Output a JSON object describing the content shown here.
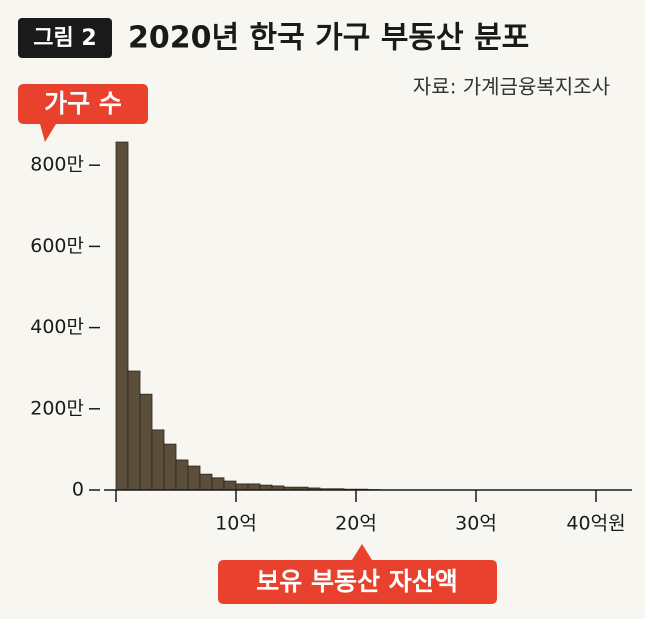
{
  "chart_data": {
    "type": "histogram",
    "badge": "그림 2",
    "title": "2020년 한국 가구 부동산 분포",
    "source": "자료: 가계금융복지조사",
    "y_label": "가구 수",
    "x_label": "보유 부동산 자산액",
    "bins": [
      0,
      1,
      2,
      3,
      4,
      5,
      6,
      7,
      8,
      9,
      10,
      11,
      12,
      13,
      14,
      15,
      16,
      17,
      18,
      19,
      20,
      21,
      22
    ],
    "counts": [
      857,
      293,
      236,
      148,
      113,
      74,
      59,
      39,
      30,
      22,
      15,
      15,
      12,
      10,
      7,
      7,
      5,
      3,
      3,
      2,
      2,
      1
    ],
    "color": "#5b4f3c",
    "xlim": [
      0,
      43
    ],
    "ylim": [
      0,
      900
    ],
    "xticks": [
      {
        "value": 10,
        "label": "10억"
      },
      {
        "value": 20,
        "label": "20억"
      },
      {
        "value": 30,
        "label": "30억"
      },
      {
        "value": 40,
        "label": "40억원"
      }
    ],
    "yticks": [
      {
        "value": 0,
        "label": "0"
      },
      {
        "value": 200,
        "label": "200만"
      },
      {
        "value": 400,
        "label": "400만"
      },
      {
        "value": 600,
        "label": "600만"
      },
      {
        "value": 800,
        "label": "800만"
      }
    ]
  }
}
